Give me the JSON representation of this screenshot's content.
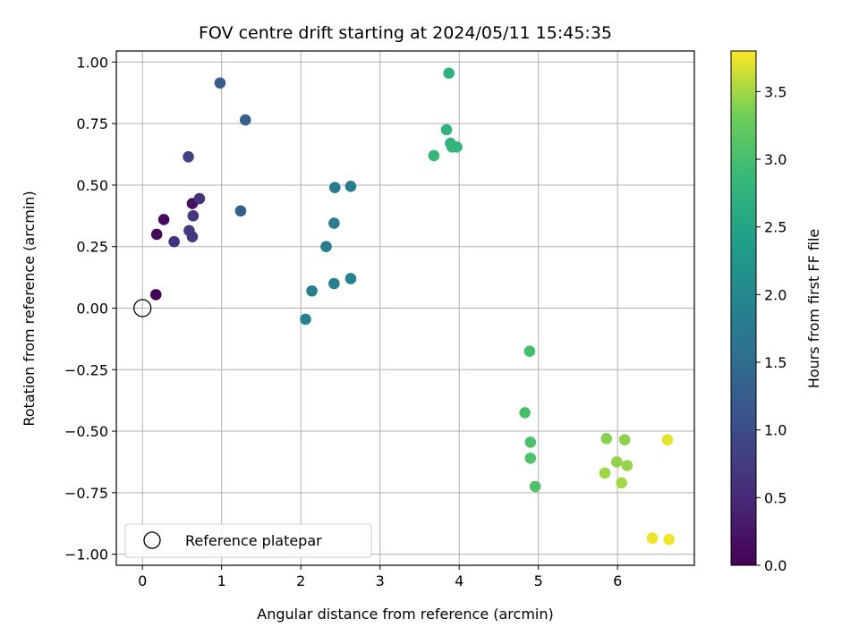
{
  "chart_data": {
    "type": "scatter",
    "title": "FOV centre drift starting at 2024/05/11 15:45:35",
    "xlabel": "Angular distance from reference (arcmin)",
    "ylabel": "Rotation from reference (arcmin)",
    "xlim": [
      -0.33,
      6.97
    ],
    "ylim": [
      -1.045,
      1.045
    ],
    "xticks": [
      0,
      1,
      2,
      3,
      4,
      5,
      6
    ],
    "xtick_labels": [
      "0",
      "1",
      "2",
      "3",
      "4",
      "5",
      "6"
    ],
    "yticks": [
      -1.0,
      -0.75,
      -0.5,
      -0.25,
      0.0,
      0.25,
      0.5,
      0.75,
      1.0
    ],
    "ytick_labels": [
      "−1.00",
      "−0.75",
      "−0.50",
      "−0.25",
      "0.00",
      "0.25",
      "0.50",
      "0.75",
      "1.00"
    ],
    "grid": true,
    "colorbar": {
      "label": "Hours from first FF file",
      "colormap": "viridis",
      "range": [
        0.0,
        3.8
      ],
      "ticks": [
        0.0,
        0.5,
        1.0,
        1.5,
        2.0,
        2.5,
        3.0,
        3.5
      ],
      "tick_labels": [
        "0.0",
        "0.5",
        "1.0",
        "1.5",
        "2.0",
        "2.5",
        "3.0",
        "3.5"
      ]
    },
    "legend": {
      "placement": "lower-left",
      "entries": [
        {
          "label": "Reference platepar",
          "marker": "open-circle"
        }
      ]
    },
    "reference_point": {
      "x": 0.0,
      "y": 0.0
    },
    "points": [
      {
        "x": 0.17,
        "y": 0.055,
        "hours": 0.05
      },
      {
        "x": 0.18,
        "y": 0.3,
        "hours": 0.1
      },
      {
        "x": 0.27,
        "y": 0.36,
        "hours": 0.15
      },
      {
        "x": 0.63,
        "y": 0.425,
        "hours": 0.2
      },
      {
        "x": 0.72,
        "y": 0.445,
        "hours": 0.62
      },
      {
        "x": 0.64,
        "y": 0.375,
        "hours": 0.67
      },
      {
        "x": 0.59,
        "y": 0.315,
        "hours": 0.7
      },
      {
        "x": 0.63,
        "y": 0.29,
        "hours": 0.72
      },
      {
        "x": 0.4,
        "y": 0.27,
        "hours": 0.6
      },
      {
        "x": 0.58,
        "y": 0.615,
        "hours": 0.85
      },
      {
        "x": 0.98,
        "y": 0.915,
        "hours": 1.25
      },
      {
        "x": 1.3,
        "y": 0.765,
        "hours": 1.28
      },
      {
        "x": 1.24,
        "y": 0.395,
        "hours": 1.3
      },
      {
        "x": 2.43,
        "y": 0.49,
        "hours": 1.75
      },
      {
        "x": 2.63,
        "y": 0.495,
        "hours": 1.78
      },
      {
        "x": 2.42,
        "y": 0.345,
        "hours": 1.8
      },
      {
        "x": 2.32,
        "y": 0.25,
        "hours": 1.82
      },
      {
        "x": 2.14,
        "y": 0.07,
        "hours": 1.85
      },
      {
        "x": 2.42,
        "y": 0.1,
        "hours": 1.87
      },
      {
        "x": 2.63,
        "y": 0.12,
        "hours": 1.9
      },
      {
        "x": 2.06,
        "y": -0.045,
        "hours": 1.92
      },
      {
        "x": 3.87,
        "y": 0.955,
        "hours": 2.75
      },
      {
        "x": 3.84,
        "y": 0.725,
        "hours": 2.78
      },
      {
        "x": 3.89,
        "y": 0.67,
        "hours": 2.8
      },
      {
        "x": 3.91,
        "y": 0.655,
        "hours": 2.82
      },
      {
        "x": 3.97,
        "y": 0.655,
        "hours": 2.84
      },
      {
        "x": 3.68,
        "y": 0.62,
        "hours": 2.86
      },
      {
        "x": 4.89,
        "y": -0.175,
        "hours": 3.0
      },
      {
        "x": 4.83,
        "y": -0.425,
        "hours": 3.02
      },
      {
        "x": 4.9,
        "y": -0.545,
        "hours": 3.04
      },
      {
        "x": 4.9,
        "y": -0.61,
        "hours": 3.06
      },
      {
        "x": 4.96,
        "y": -0.725,
        "hours": 3.08
      },
      {
        "x": 5.86,
        "y": -0.53,
        "hours": 3.4
      },
      {
        "x": 6.09,
        "y": -0.535,
        "hours": 3.42
      },
      {
        "x": 5.99,
        "y": -0.625,
        "hours": 3.44
      },
      {
        "x": 6.12,
        "y": -0.64,
        "hours": 3.46
      },
      {
        "x": 5.84,
        "y": -0.67,
        "hours": 3.48
      },
      {
        "x": 6.05,
        "y": -0.71,
        "hours": 3.5
      },
      {
        "x": 6.63,
        "y": -0.535,
        "hours": 3.72
      },
      {
        "x": 6.44,
        "y": -0.935,
        "hours": 3.74
      },
      {
        "x": 6.65,
        "y": -0.94,
        "hours": 3.76
      }
    ]
  }
}
